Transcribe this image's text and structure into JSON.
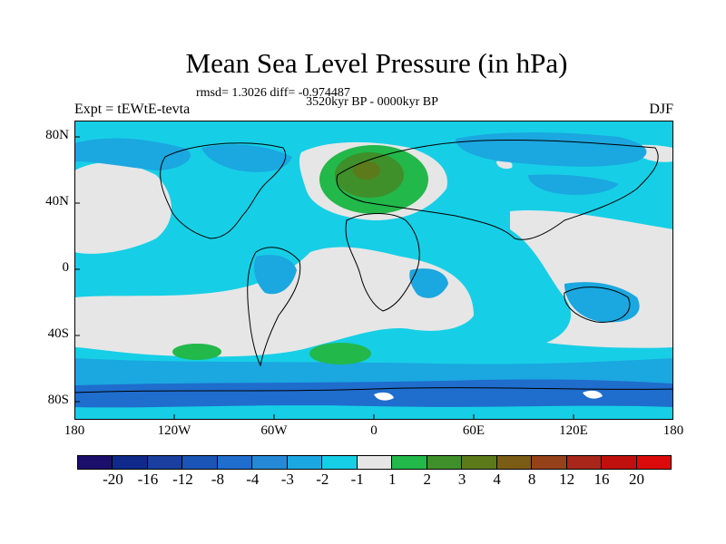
{
  "title": "Mean Sea Level Pressure (in hPa)",
  "stats": "rmsd= 1.3026 diff= -0.974487",
  "period": "3520kyr BP - 0000kyr BP",
  "experiment": "Expt = tEWtE-tevta",
  "season": "DJF",
  "y_labels": [
    "80N",
    "40N",
    "0",
    "40S",
    "80S"
  ],
  "x_labels": [
    "180",
    "120W",
    "60W",
    "0",
    "60E",
    "120E",
    "180"
  ],
  "colorbar": {
    "labels": [
      "-20",
      "-16",
      "-12",
      "-8",
      "-4",
      "-3",
      "-2",
      "-1",
      "1",
      "2",
      "3",
      "4",
      "8",
      "12",
      "16",
      "20"
    ],
    "colors": [
      "#1b0f6b",
      "#0f2a8a",
      "#1a3f9e",
      "#1b55b5",
      "#1f6dcd",
      "#2589d8",
      "#1ba7e0",
      "#16cfe6",
      "#e6e6e6",
      "#22b84a",
      "#3f8f2a",
      "#5d7a1b",
      "#7b5c14",
      "#95411a",
      "#a8261a",
      "#c0100e",
      "#dc0b0b"
    ]
  }
}
